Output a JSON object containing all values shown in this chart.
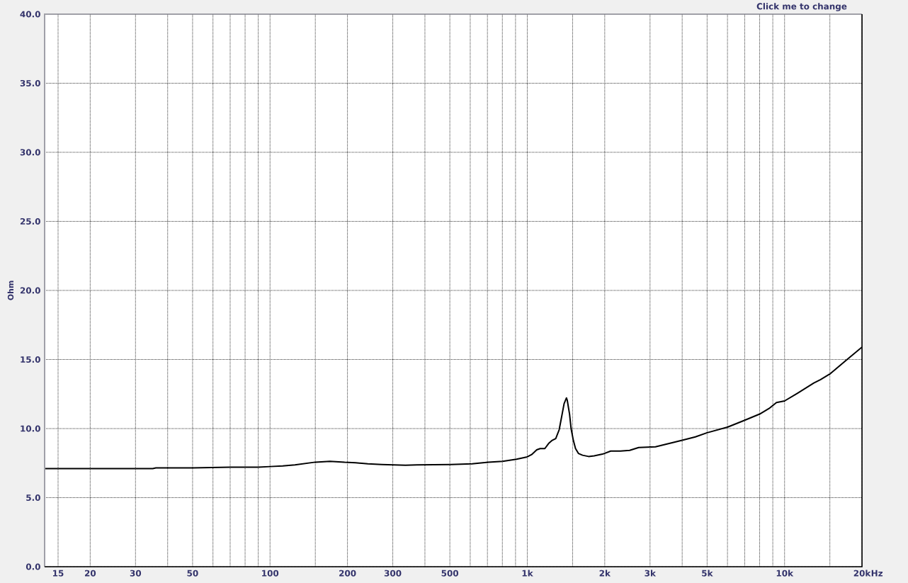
{
  "chart_data": {
    "type": "line",
    "annotations": [
      "Click me to change"
    ],
    "ylabel": "Ohm",
    "xlabel": "Hz",
    "log": "x",
    "grid": true,
    "line_style": "solid",
    "color": "#000000",
    "x": [
      13.3,
      20,
      30,
      35,
      36,
      50,
      70,
      90,
      100,
      112,
      125,
      150,
      171,
      195,
      215,
      240,
      272,
      336,
      373,
      504,
      610,
      705,
      802,
      908,
      1000,
      1040,
      1088,
      1122,
      1170,
      1210,
      1250,
      1290,
      1330,
      1360,
      1390,
      1420,
      1430,
      1460,
      1480,
      1510,
      1540,
      1580,
      1640,
      1730,
      1820,
      1960,
      2110,
      2300,
      2500,
      2710,
      3150,
      4000,
      4500,
      5000,
      6000,
      7000,
      8000,
      8700,
      9300,
      10000,
      11200,
      13000,
      13800,
      15000,
      17500,
      20000
    ],
    "values": [
      7.1,
      7.1,
      7.1,
      7.1,
      7.15,
      7.15,
      7.2,
      7.2,
      7.25,
      7.3,
      7.37,
      7.57,
      7.63,
      7.56,
      7.53,
      7.45,
      7.4,
      7.35,
      7.37,
      7.4,
      7.45,
      7.56,
      7.63,
      7.78,
      7.95,
      8.12,
      8.46,
      8.55,
      8.55,
      8.92,
      9.15,
      9.28,
      9.91,
      10.86,
      11.8,
      12.22,
      12.05,
      11.03,
      10.0,
      9.15,
      8.55,
      8.2,
      8.07,
      7.98,
      8.03,
      8.15,
      8.37,
      8.37,
      8.42,
      8.63,
      8.68,
      9.15,
      9.4,
      9.7,
      10.1,
      10.6,
      11.05,
      11.45,
      11.88,
      12.0,
      12.55,
      13.3,
      13.55,
      13.95,
      15.0,
      15.9
    ],
    "xlim": [
      13.3,
      20000
    ],
    "ylim": [
      0,
      40
    ],
    "xticks": [
      15,
      20,
      30,
      {
        "value": 40,
        "label": null
      },
      50,
      {
        "value": 60,
        "label": null
      },
      {
        "value": 70,
        "label": null
      },
      {
        "value": 80,
        "label": null
      },
      {
        "value": 90,
        "label": null
      },
      100,
      {
        "value": 150,
        "label": null
      },
      200,
      300,
      {
        "value": 400,
        "label": null
      },
      500,
      {
        "value": 600,
        "label": null
      },
      {
        "value": 700,
        "label": null
      },
      {
        "value": 800,
        "label": null
      },
      {
        "value": 900,
        "label": null
      },
      {
        "value": 1000,
        "label": "1k"
      },
      {
        "value": 1500,
        "label": null
      },
      {
        "value": 2000,
        "label": "2k"
      },
      {
        "value": 3000,
        "label": "3k"
      },
      {
        "value": 4000,
        "label": null
      },
      {
        "value": 5000,
        "label": "5k"
      },
      {
        "value": 6000,
        "label": null
      },
      {
        "value": 7000,
        "label": null
      },
      {
        "value": 8000,
        "label": null
      },
      {
        "value": 9000,
        "label": null
      },
      {
        "value": 10000,
        "label": "10k"
      },
      {
        "value": 15000,
        "label": null
      },
      {
        "value": 20000,
        "label": "20k"
      }
    ],
    "yticks": [
      {
        "value": 0,
        "label": "0.0"
      },
      {
        "value": 5,
        "label": "5.0"
      },
      {
        "value": 10,
        "label": "10.0"
      },
      {
        "value": 15,
        "label": "15.0"
      },
      {
        "value": 20,
        "label": "20.0"
      },
      {
        "value": 25,
        "label": "25.0"
      },
      {
        "value": 30,
        "label": "30.0"
      },
      {
        "value": 35,
        "label": "35.0"
      },
      {
        "value": 40,
        "label": "40.0"
      }
    ]
  }
}
